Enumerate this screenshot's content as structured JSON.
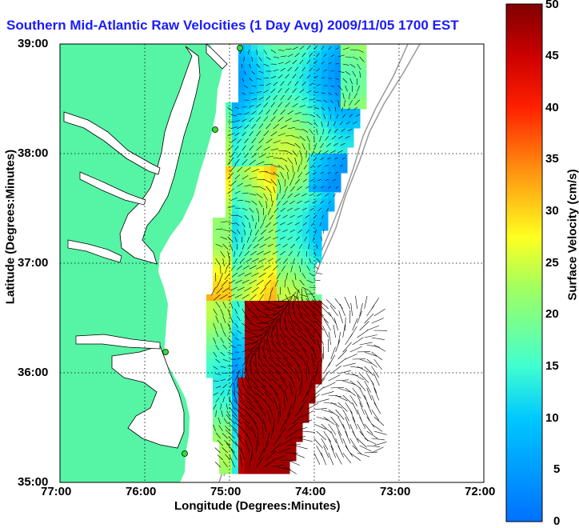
{
  "title": "Southern Mid-Atlantic Raw Velocities (1 Day Avg) 2009/11/05 1700 EST",
  "xlabel": "Longitude (Degrees:Minutes)",
  "ylabel": "Latitude (Degrees:Minutes)",
  "colorbar": {
    "label": "Surface Velocity (cm/s)",
    "min": 0,
    "max": 50,
    "ticks": [
      "50",
      "45",
      "40",
      "35",
      "30",
      "25",
      "20",
      "15",
      "10",
      "5",
      "0"
    ]
  },
  "axes": {
    "x_ticks": [
      "77:00",
      "76:00",
      "75:00",
      "74:00",
      "73:00",
      "72:00"
    ],
    "y_ticks": [
      "39:00",
      "38:00",
      "37:00",
      "36:00",
      "35:00"
    ],
    "xlim": [
      -77,
      -72
    ],
    "ylim": [
      35,
      39
    ],
    "grid": true
  },
  "colors": {
    "land": "#55f5a5",
    "title": "#1a1aff",
    "coast": "#000000",
    "bathymetry": "#999999",
    "station": "#33dd33"
  }
}
